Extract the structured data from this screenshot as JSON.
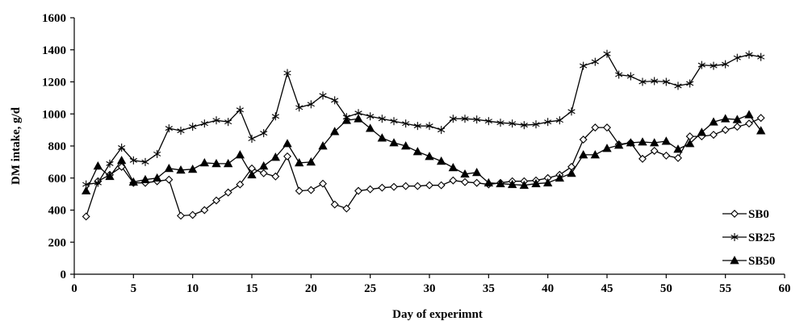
{
  "chart_data": {
    "type": "line",
    "xlabel": "Day of experimnt",
    "ylabel": "DM intake, g/d",
    "xlim": [
      0,
      60
    ],
    "ylim": [
      0,
      1600
    ],
    "xticks": [
      0,
      5,
      10,
      15,
      20,
      25,
      30,
      35,
      40,
      45,
      50,
      55,
      60
    ],
    "yticks": [
      0,
      200,
      400,
      600,
      800,
      1000,
      1200,
      1400,
      1600
    ],
    "grid": false,
    "legend_position": "right",
    "x": [
      1,
      2,
      3,
      4,
      5,
      6,
      7,
      8,
      9,
      10,
      11,
      12,
      13,
      14,
      15,
      16,
      17,
      18,
      19,
      20,
      21,
      22,
      23,
      24,
      25,
      26,
      27,
      28,
      29,
      30,
      31,
      32,
      33,
      34,
      35,
      36,
      37,
      38,
      39,
      40,
      41,
      42,
      43,
      44,
      45,
      46,
      47,
      48,
      49,
      50,
      51,
      52,
      53,
      54,
      55,
      56,
      57,
      58
    ],
    "series": [
      {
        "name": "SB0",
        "marker": "open-diamond",
        "values": [
          360,
          580,
          620,
          670,
          570,
          570,
          580,
          590,
          365,
          370,
          400,
          460,
          510,
          560,
          660,
          630,
          610,
          735,
          520,
          525,
          565,
          435,
          410,
          520,
          530,
          540,
          545,
          550,
          550,
          555,
          555,
          585,
          575,
          570,
          560,
          570,
          580,
          580,
          585,
          600,
          620,
          670,
          840,
          915,
          915,
          810,
          820,
          720,
          770,
          740,
          725,
          860,
          860,
          870,
          900,
          920,
          940,
          975
        ]
      },
      {
        "name": "SB25",
        "marker": "asterisk",
        "values": [
          560,
          570,
          690,
          790,
          710,
          700,
          750,
          910,
          895,
          920,
          940,
          960,
          950,
          1025,
          845,
          880,
          985,
          1255,
          1040,
          1060,
          1115,
          1085,
          980,
          1005,
          985,
          970,
          955,
          940,
          925,
          925,
          900,
          970,
          970,
          965,
          955,
          945,
          940,
          930,
          935,
          950,
          960,
          1015,
          1300,
          1325,
          1375,
          1245,
          1235,
          1200,
          1205,
          1200,
          1175,
          1190,
          1305,
          1300,
          1310,
          1350,
          1370,
          1355
        ]
      },
      {
        "name": "SB50",
        "marker": "filled-triangle",
        "values": [
          520,
          675,
          610,
          710,
          575,
          590,
          600,
          660,
          650,
          655,
          695,
          690,
          690,
          745,
          620,
          675,
          730,
          815,
          695,
          700,
          800,
          890,
          960,
          970,
          910,
          850,
          820,
          800,
          765,
          735,
          705,
          665,
          625,
          635,
          570,
          565,
          560,
          555,
          565,
          570,
          600,
          630,
          745,
          745,
          785,
          805,
          820,
          825,
          820,
          830,
          780,
          815,
          885,
          950,
          970,
          965,
          995,
          895
        ]
      }
    ]
  }
}
